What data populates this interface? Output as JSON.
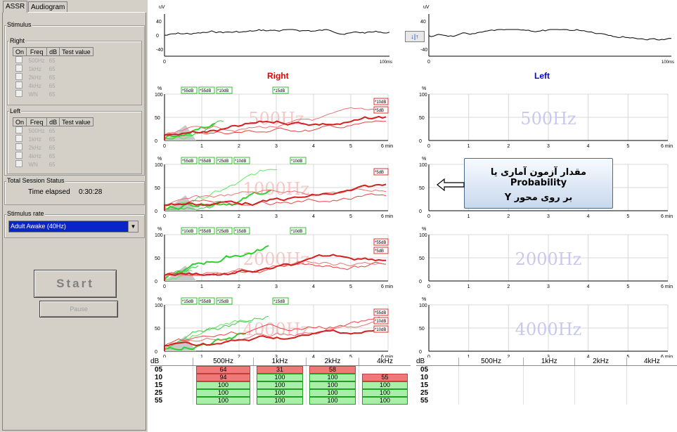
{
  "tabs": [
    "ASSR",
    "Audiogram"
  ],
  "stimulus": {
    "group_label": "Stimulus",
    "right_label": "Right",
    "left_label": "Left",
    "columns": [
      "On",
      "Freq",
      "dB",
      "Test value"
    ],
    "right_rows": [
      {
        "freq": "500Hz",
        "db": "65"
      },
      {
        "freq": "1kHz",
        "db": "65"
      },
      {
        "freq": "2kHz",
        "db": "65"
      },
      {
        "freq": "4kHz",
        "db": "65"
      },
      {
        "freq": "WN",
        "db": "65"
      }
    ],
    "left_rows": [
      {
        "freq": "500Hz",
        "db": "65"
      },
      {
        "freq": "1kHz",
        "db": "65"
      },
      {
        "freq": "2kHz",
        "db": "65"
      },
      {
        "freq": "4kHz",
        "db": "65"
      },
      {
        "freq": "WN",
        "db": "65"
      }
    ]
  },
  "session": {
    "group_label": "Total Session Status",
    "elapsed_label": "Time elapsed",
    "elapsed_value": "0:30:28"
  },
  "rate": {
    "group_label": "Stimulus rate",
    "selected": "Adult Awake (40Hz)"
  },
  "buttons": {
    "start": "Start",
    "pause": "Pause"
  },
  "eeg": {
    "ylabel": "uV",
    "yticks": [
      "40",
      "0",
      "-40"
    ],
    "xticks": [
      "0",
      "100ms"
    ],
    "swap_label": "↓|↑"
  },
  "headers": {
    "right": "Right",
    "left": "Left"
  },
  "colors": {
    "right": "#e00000",
    "left": "#0000e0",
    "green": "#40e040",
    "red": "#e04040"
  },
  "plots": {
    "ylabel": "%",
    "yticks": [
      "100",
      "50",
      "0"
    ],
    "xticks": [
      "0",
      "1",
      "2",
      "3",
      "4",
      "5",
      "6 min"
    ],
    "frequencies": [
      "500Hz",
      "1000Hz",
      "2000Hz",
      "4000Hz"
    ],
    "right_labels": [
      {
        "green": [
          "*55dB",
          "*55dB",
          "*10dB",
          "*15dB"
        ],
        "red": [
          "*10dB",
          "*5dB"
        ]
      },
      {
        "green": [
          "*55dB",
          "*55dB",
          "*25dB",
          "*10dB",
          "*10dB"
        ],
        "red": [
          "*5dB"
        ]
      },
      {
        "green": [
          "*10dB",
          "*55dB",
          "*25dB",
          "*15dB",
          "*10dB"
        ],
        "red": [
          "*55dB",
          "*5dB"
        ]
      },
      {
        "green": [
          "*15dB",
          "*55dB",
          "*25dB",
          "*15dB"
        ],
        "red": [
          "*55dB",
          "*10dB",
          "*10dB"
        ]
      }
    ]
  },
  "annotation": {
    "line1": "مقدار آزمون آماری یا Probability",
    "line2": "بر روی محور Y"
  },
  "table": {
    "db_header": "dB",
    "columns": [
      "500Hz",
      "1kHz",
      "2kHz",
      "4kHz"
    ],
    "rows": [
      {
        "db": "05",
        "cells": [
          "64",
          "31",
          "58",
          ""
        ],
        "status": [
          "red",
          "red",
          "red",
          ""
        ]
      },
      {
        "db": "10",
        "cells": [
          "94",
          "100",
          "100",
          "55"
        ],
        "status": [
          "red",
          "green",
          "green",
          "red"
        ]
      },
      {
        "db": "15",
        "cells": [
          "100",
          "100",
          "100",
          "100"
        ],
        "status": [
          "green",
          "green",
          "green",
          "green"
        ]
      },
      {
        "db": "25",
        "cells": [
          "100",
          "100",
          "100",
          "100"
        ],
        "status": [
          "green",
          "green",
          "green",
          "green"
        ]
      },
      {
        "db": "55",
        "cells": [
          "100",
          "100",
          "100",
          "100"
        ],
        "status": [
          "green",
          "green",
          "green",
          "green"
        ]
      }
    ]
  }
}
